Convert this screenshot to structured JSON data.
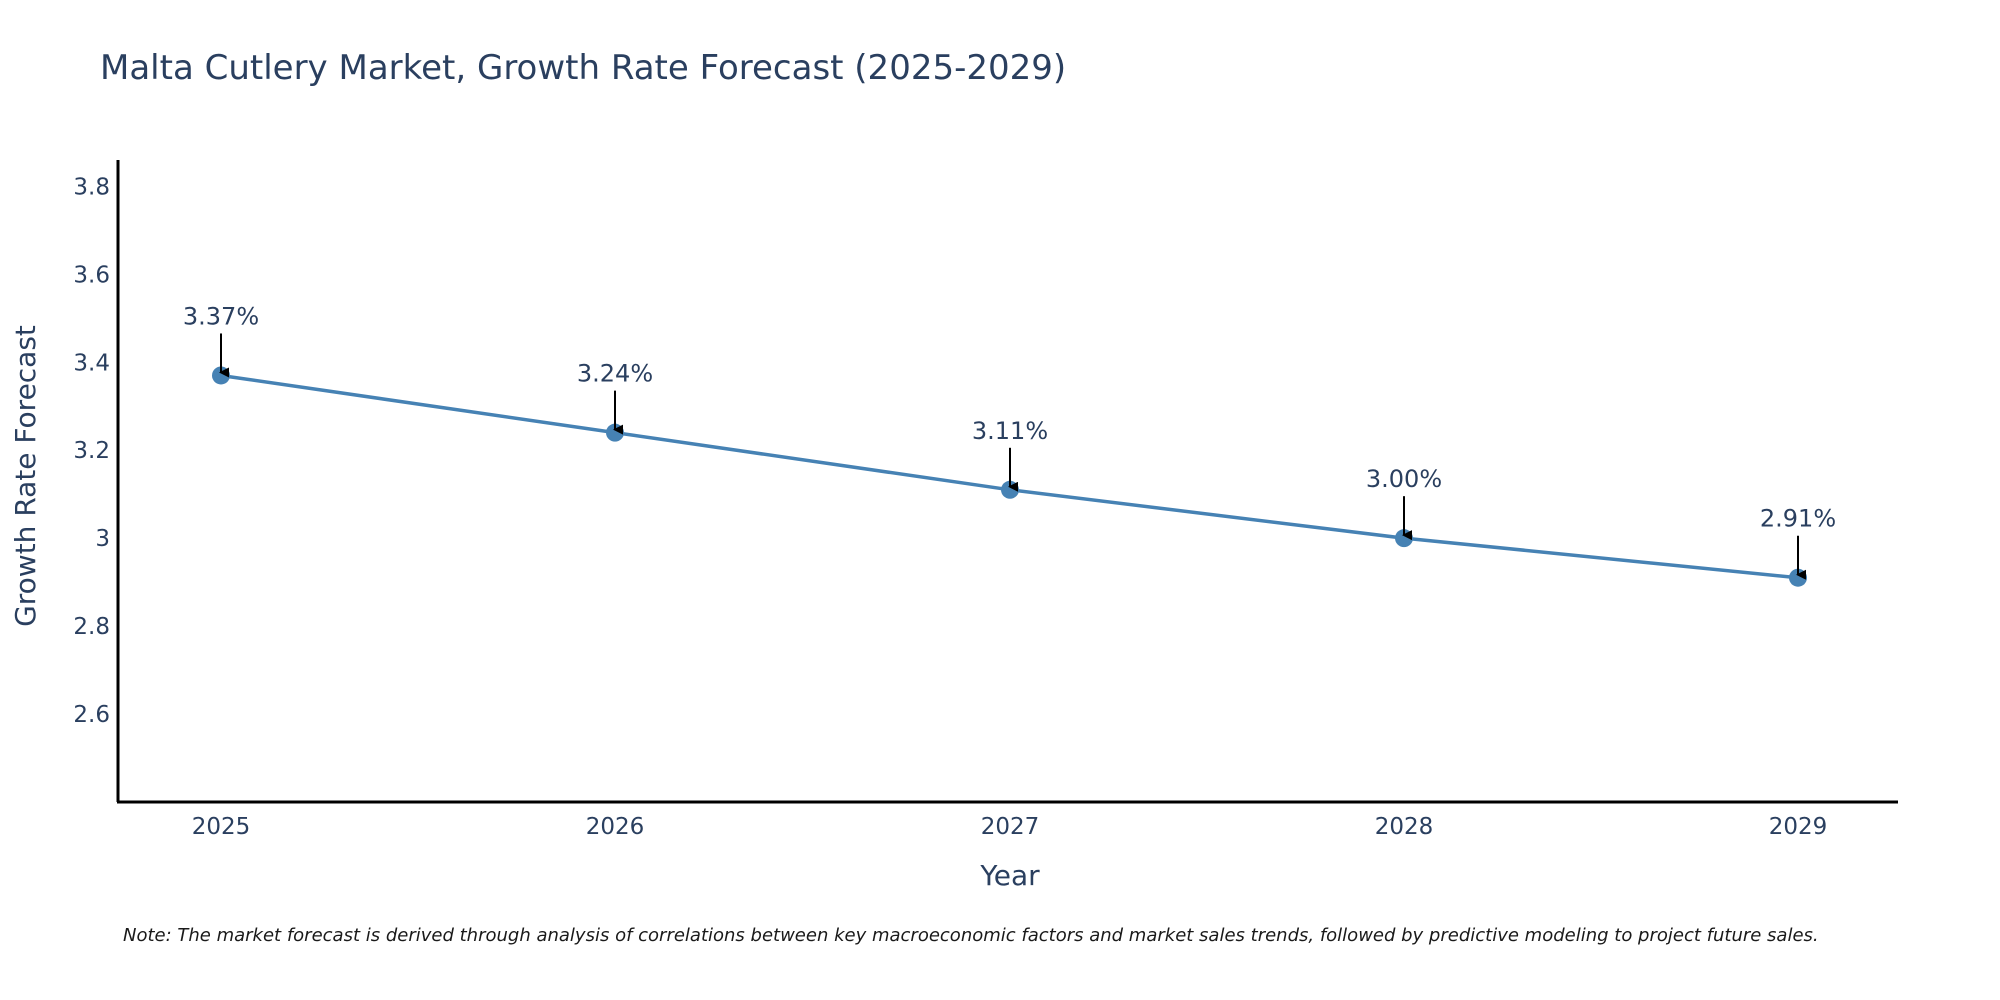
{
  "chart_data": {
    "type": "line",
    "title": "Malta Cutlery Market, Growth Rate Forecast (2025-2029)",
    "xlabel": "Year",
    "ylabel": "Growth Rate Forecast",
    "categories": [
      "2025",
      "2026",
      "2027",
      "2028",
      "2029"
    ],
    "series": [
      {
        "name": "Growth Rate Forecast",
        "values": [
          3.37,
          3.24,
          3.11,
          3.0,
          2.91
        ],
        "color": "#4682b4"
      }
    ],
    "data_labels": [
      "3.37%",
      "3.24%",
      "3.11%",
      "3.00%",
      "2.91%"
    ],
    "ylim": [
      2.4,
      3.86
    ],
    "yticks": [
      2.6,
      2.8,
      3.0,
      3.2,
      3.4,
      3.6,
      3.8
    ],
    "ytick_labels": [
      "2.6",
      "2.8",
      "3",
      "3.2",
      "3.4",
      "3.6",
      "3.8"
    ],
    "grid": false,
    "legend": "none",
    "note": "Note: The market forecast is derived through analysis of correlations between key macroeconomic factors and market sales trends, followed by predictive modeling to project future sales."
  },
  "colors": {
    "line": "#4682b4",
    "marker": "#4682b4",
    "axis": "#000000",
    "text": "#2a3f5f"
  }
}
